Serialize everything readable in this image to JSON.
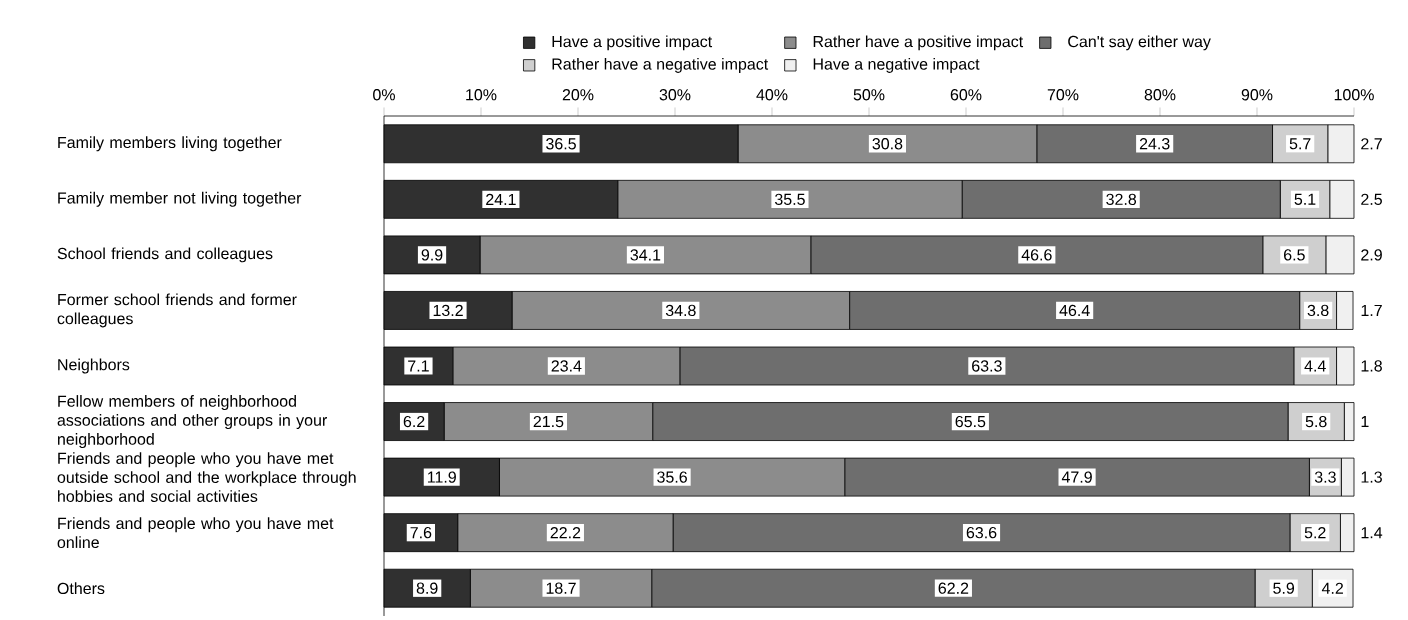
{
  "chart_data": {
    "type": "bar",
    "orientation": "horizontal",
    "stacked": true,
    "data_labels": true,
    "legend": "top",
    "grid": false,
    "categories": [
      "Family members living together",
      "Family member not living together",
      "School friends and colleagues",
      "Former school friends and former colleagues",
      "Neighbors",
      "Fellow members of neighborhood associations and other groups in your neighborhood",
      "Friends and people who you have met outside school and the workplace through hobbies and social activities",
      "Friends and people who you have met online",
      "Others"
    ],
    "xlim": [
      0,
      100
    ],
    "xticks": [
      {
        "value": 0,
        "label": "0%"
      },
      {
        "value": 10,
        "label": "10%"
      },
      {
        "value": 20,
        "label": "20%"
      },
      {
        "value": 30,
        "label": "30%"
      },
      {
        "value": 40,
        "label": "40%"
      },
      {
        "value": 50,
        "label": "50%"
      },
      {
        "value": 60,
        "label": "60%"
      },
      {
        "value": 70,
        "label": "70%"
      },
      {
        "value": 80,
        "label": "80%"
      },
      {
        "value": 90,
        "label": "90%"
      },
      {
        "value": 100,
        "label": "100%"
      }
    ],
    "series": [
      {
        "name": "Have a positive impact",
        "color": "#303030",
        "values": [
          36.5,
          24.1,
          9.9,
          13.2,
          7.1,
          6.2,
          11.9,
          7.6,
          8.9
        ]
      },
      {
        "name": "Rather have a positive impact",
        "color": "#8c8c8c",
        "values": [
          30.8,
          35.5,
          34.1,
          34.8,
          23.4,
          21.5,
          35.6,
          22.2,
          18.7
        ]
      },
      {
        "name": "Can't say either way",
        "color": "#6e6e6e",
        "values": [
          24.3,
          32.8,
          46.6,
          46.4,
          63.3,
          65.5,
          47.9,
          63.6,
          62.2
        ]
      },
      {
        "name": "Rather have a negative impact",
        "color": "#cfcfcf",
        "values": [
          5.7,
          5.1,
          6.5,
          3.8,
          4.4,
          5.8,
          3.3,
          5.2,
          5.9
        ]
      },
      {
        "name": "Have a negative impact",
        "color": "#f0f0f0",
        "values": [
          2.7,
          2.5,
          2.9,
          1.7,
          1.8,
          1,
          1.3,
          1.4,
          4.2
        ]
      }
    ]
  }
}
